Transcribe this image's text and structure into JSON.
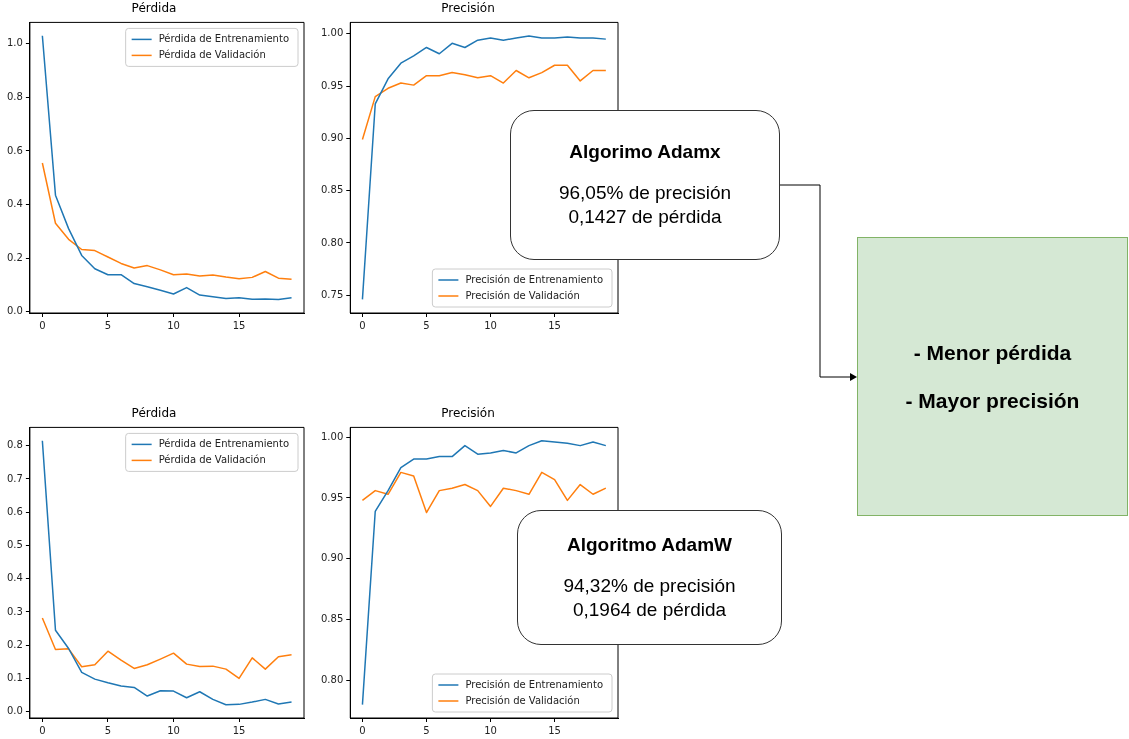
{
  "chart_data": [
    {
      "type": "line",
      "title": "Pérdida",
      "x": [
        0,
        1,
        2,
        3,
        4,
        5,
        6,
        7,
        8,
        9,
        10,
        11,
        12,
        13,
        14,
        15,
        16,
        17,
        18,
        19
      ],
      "xlim": [
        -0.95,
        19.95
      ],
      "xticks": [
        0,
        5,
        10,
        15
      ],
      "ylim": [
        -0.005,
        1.08
      ],
      "yticks": [
        {
          "value": 0,
          "label": "0.0"
        },
        0.2,
        0.4,
        0.6,
        0.8,
        {
          "value": 1,
          "label": "1.0"
        }
      ],
      "grid": false,
      "legend": "top right",
      "series": [
        {
          "name": "Pérdida de Entrenamiento",
          "color": "#1f77b4",
          "values": [
            1.03,
            0.435,
            0.31,
            0.21,
            0.16,
            0.138,
            0.138,
            0.105,
            0.093,
            0.08,
            0.066,
            0.09,
            0.062,
            0.056,
            0.049,
            0.052,
            0.046,
            0.047,
            0.045,
            0.052
          ]
        },
        {
          "name": "Pérdida de Validación",
          "color": "#ff7f0e",
          "values": [
            0.555,
            0.33,
            0.27,
            0.232,
            0.228,
            0.204,
            0.18,
            0.163,
            0.172,
            0.156,
            0.138,
            0.141,
            0.133,
            0.137,
            0.129,
            0.123,
            0.128,
            0.15,
            0.125,
            0.121
          ]
        }
      ]
    },
    {
      "type": "line",
      "title": "Precisión",
      "x": [
        0,
        1,
        2,
        3,
        4,
        5,
        6,
        7,
        8,
        9,
        10,
        11,
        12,
        13,
        14,
        15,
        16,
        17,
        18,
        19
      ],
      "xlim": [
        -0.95,
        19.95
      ],
      "xticks": [
        0,
        5,
        10,
        15
      ],
      "ylim": [
        0.733,
        1.011
      ],
      "yticks": [
        0.75,
        {
          "value": 0.8,
          "label": "0.80"
        },
        0.85,
        {
          "value": 0.9,
          "label": "0.90"
        },
        0.95,
        {
          "value": 1,
          "label": "1.00"
        }
      ],
      "grid": false,
      "legend": "bottom right",
      "series": [
        {
          "name": "Precisión de Entrenamiento",
          "color": "#1f77b4",
          "values": [
            0.746,
            0.933,
            0.957,
            0.972,
            0.979,
            0.987,
            0.981,
            0.991,
            0.987,
            0.994,
            0.996,
            0.994,
            0.996,
            0.998,
            0.996,
            0.996,
            0.997,
            0.996,
            0.996,
            0.995
          ]
        },
        {
          "name": "Precisión de Validación",
          "color": "#ff7f0e",
          "values": [
            0.899,
            0.94,
            0.948,
            0.953,
            0.951,
            0.96,
            0.96,
            0.963,
            0.961,
            0.958,
            0.96,
            0.953,
            0.965,
            0.958,
            0.963,
            0.97,
            0.97,
            0.955,
            0.965,
            0.965
          ]
        }
      ]
    },
    {
      "type": "line",
      "title": "Pérdida",
      "x": [
        0,
        1,
        2,
        3,
        4,
        5,
        6,
        7,
        8,
        9,
        10,
        11,
        12,
        13,
        14,
        15,
        16,
        17,
        18,
        19
      ],
      "xlim": [
        -0.95,
        19.95
      ],
      "xticks": [
        0,
        5,
        10,
        15
      ],
      "ylim": [
        -0.019,
        0.855
      ],
      "yticks": [
        {
          "value": 0,
          "label": "0.0"
        },
        0.1,
        0.2,
        0.3,
        0.4,
        0.5,
        0.6,
        0.7,
        0.8
      ],
      "grid": false,
      "legend": "top right",
      "series": [
        {
          "name": "Pérdida de Entrenamiento",
          "color": "#1f77b4",
          "values": [
            0.815,
            0.245,
            0.19,
            0.118,
            0.098,
            0.087,
            0.077,
            0.073,
            0.047,
            0.063,
            0.062,
            0.042,
            0.06,
            0.037,
            0.021,
            0.022,
            0.029,
            0.037,
            0.023,
            0.029
          ]
        },
        {
          "name": "Pérdida de Validación",
          "color": "#ff7f0e",
          "values": [
            0.282,
            0.187,
            0.189,
            0.135,
            0.141,
            0.182,
            0.155,
            0.13,
            0.141,
            0.158,
            0.176,
            0.143,
            0.136,
            0.137,
            0.128,
            0.1,
            0.162,
            0.128,
            0.165,
            0.171
          ]
        }
      ]
    },
    {
      "type": "line",
      "title": "Precisión",
      "x": [
        0,
        1,
        2,
        3,
        4,
        5,
        6,
        7,
        8,
        9,
        10,
        11,
        12,
        13,
        14,
        15,
        16,
        17,
        18,
        19
      ],
      "xlim": [
        -0.95,
        19.95
      ],
      "xticks": [
        0,
        5,
        10,
        15
      ],
      "ylim": [
        0.769,
        1.008
      ],
      "yticks": [
        {
          "value": 0.8,
          "label": "0.80"
        },
        0.85,
        {
          "value": 0.9,
          "label": "0.90"
        },
        0.95,
        {
          "value": 1,
          "label": "1.00"
        }
      ],
      "grid": false,
      "legend": "bottom right",
      "series": [
        {
          "name": "Precisión de Entrenamiento",
          "color": "#1f77b4",
          "values": [
            0.78,
            0.939,
            0.956,
            0.975,
            0.982,
            0.982,
            0.984,
            0.984,
            0.993,
            0.986,
            0.987,
            0.989,
            0.987,
            0.993,
            0.997,
            0.996,
            0.995,
            0.993,
            0.996,
            0.993
          ]
        },
        {
          "name": "Precisión de Validación",
          "color": "#ff7f0e",
          "values": [
            0.948,
            0.956,
            0.953,
            0.971,
            0.968,
            0.938,
            0.956,
            0.958,
            0.961,
            0.956,
            0.943,
            0.958,
            0.956,
            0.953,
            0.971,
            0.965,
            0.948,
            0.961,
            0.953,
            0.958
          ]
        }
      ]
    },
    {
      "type": "other",
      "title": "Algorimo Adamx",
      "annotations": [
        "96,05% de precisión",
        "0,1427 de pérdida"
      ]
    },
    {
      "type": "other",
      "title": "Algoritmo AdamW",
      "annotations": [
        "94,32% de precisión",
        "0,1964 de pérdida"
      ]
    },
    {
      "type": "other",
      "color": "#d5e8d4",
      "annotations": [
        "- Menor pérdida",
        "- Mayor precisión"
      ]
    }
  ]
}
